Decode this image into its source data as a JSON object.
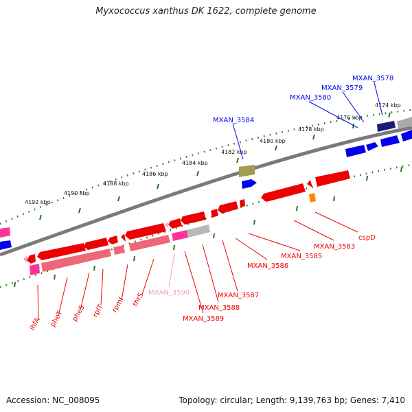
{
  "title": "Myxococcus xanthus DK 1622, complete genome",
  "accession": "Accession: NC_008095",
  "summary": "Topology: circular; Length: 9,139,763 bp; Genes: 7,410",
  "colors": {
    "forward": "#0000ee",
    "reverse": "#ee0000",
    "rna": "#ff3399",
    "rna_light": "#ff99cc",
    "pseudo": "#b8b8b8",
    "olive": "#a39b4f",
    "orange": "#ff8800",
    "backbone": "#7a7a7a",
    "tick": "#1a7a1a"
  },
  "ruler_labels": [
    "4174 kbp",
    "4176 kbp",
    "4178 kbp",
    "4180 kbp",
    "4182 kbp",
    "4184 kbp",
    "4186 kbp",
    "4188 kbp",
    "4190 kbp",
    "4192 kbp"
  ],
  "gene_labels": {
    "forward": [
      "MXAN_3578",
      "MXAN_3579",
      "MXAN_3580",
      "MXAN_3584"
    ],
    "reverse": [
      "cspD",
      "MXAN_3583",
      "MXAN_3585",
      "MXAN_3586",
      "MXAN_3587",
      "MXAN_3588",
      "MXAN_3589",
      "MXAN_3590",
      "thrS",
      "rpmI",
      "rplT",
      "pheS",
      "pheT",
      "ihfA"
    ]
  }
}
